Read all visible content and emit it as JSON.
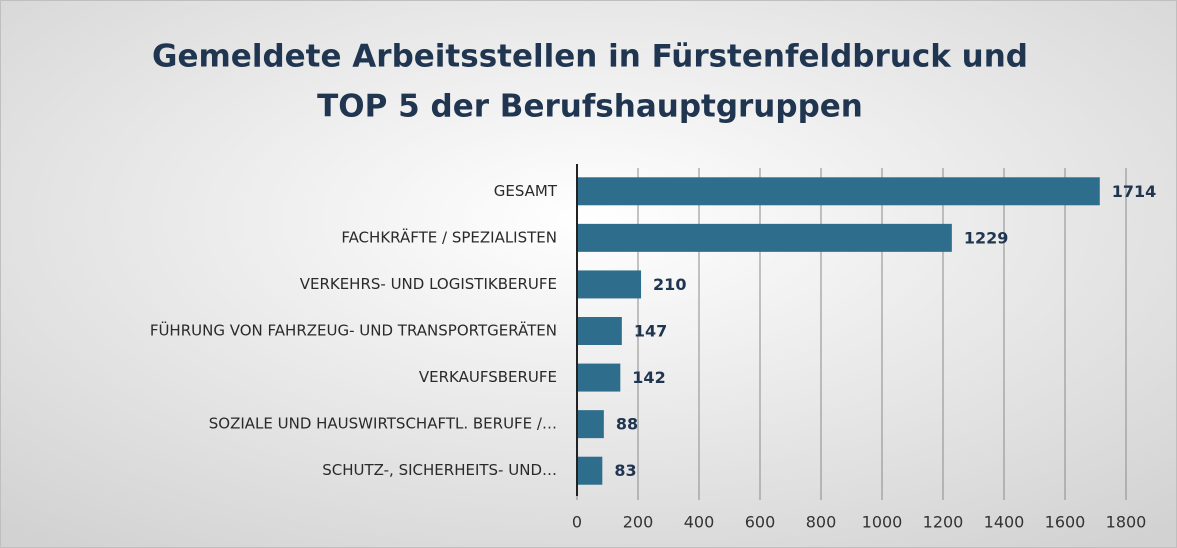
{
  "chart_data": {
    "type": "barh",
    "title": [
      "Gemeldete Arbeitsstellen in Fürstenfeldbruck und",
      "TOP 5 der Berufshauptgruppen"
    ],
    "categories": [
      "GESAMT",
      "FACHKRÄFTE / SPEZIALISTEN",
      "VERKEHRS- UND LOGISTIKBERUFE",
      "FÜHRUNG VON FAHRZEUG- UND TRANSPORTGERÄTEN",
      "VERKAUFSBERUFE",
      "SOZIALE UND HAUSWIRTSCHAFTL. BERUFE /…",
      "SCHUTZ-, SICHERHEITS- UND…"
    ],
    "values": [
      1714,
      1229,
      210,
      147,
      142,
      88,
      83
    ],
    "color": "#2e6e8c",
    "xlim": [
      0,
      1800
    ],
    "xticks": [
      0,
      200,
      400,
      600,
      800,
      1000,
      1200,
      1400,
      1600,
      1800
    ],
    "grid": true
  }
}
